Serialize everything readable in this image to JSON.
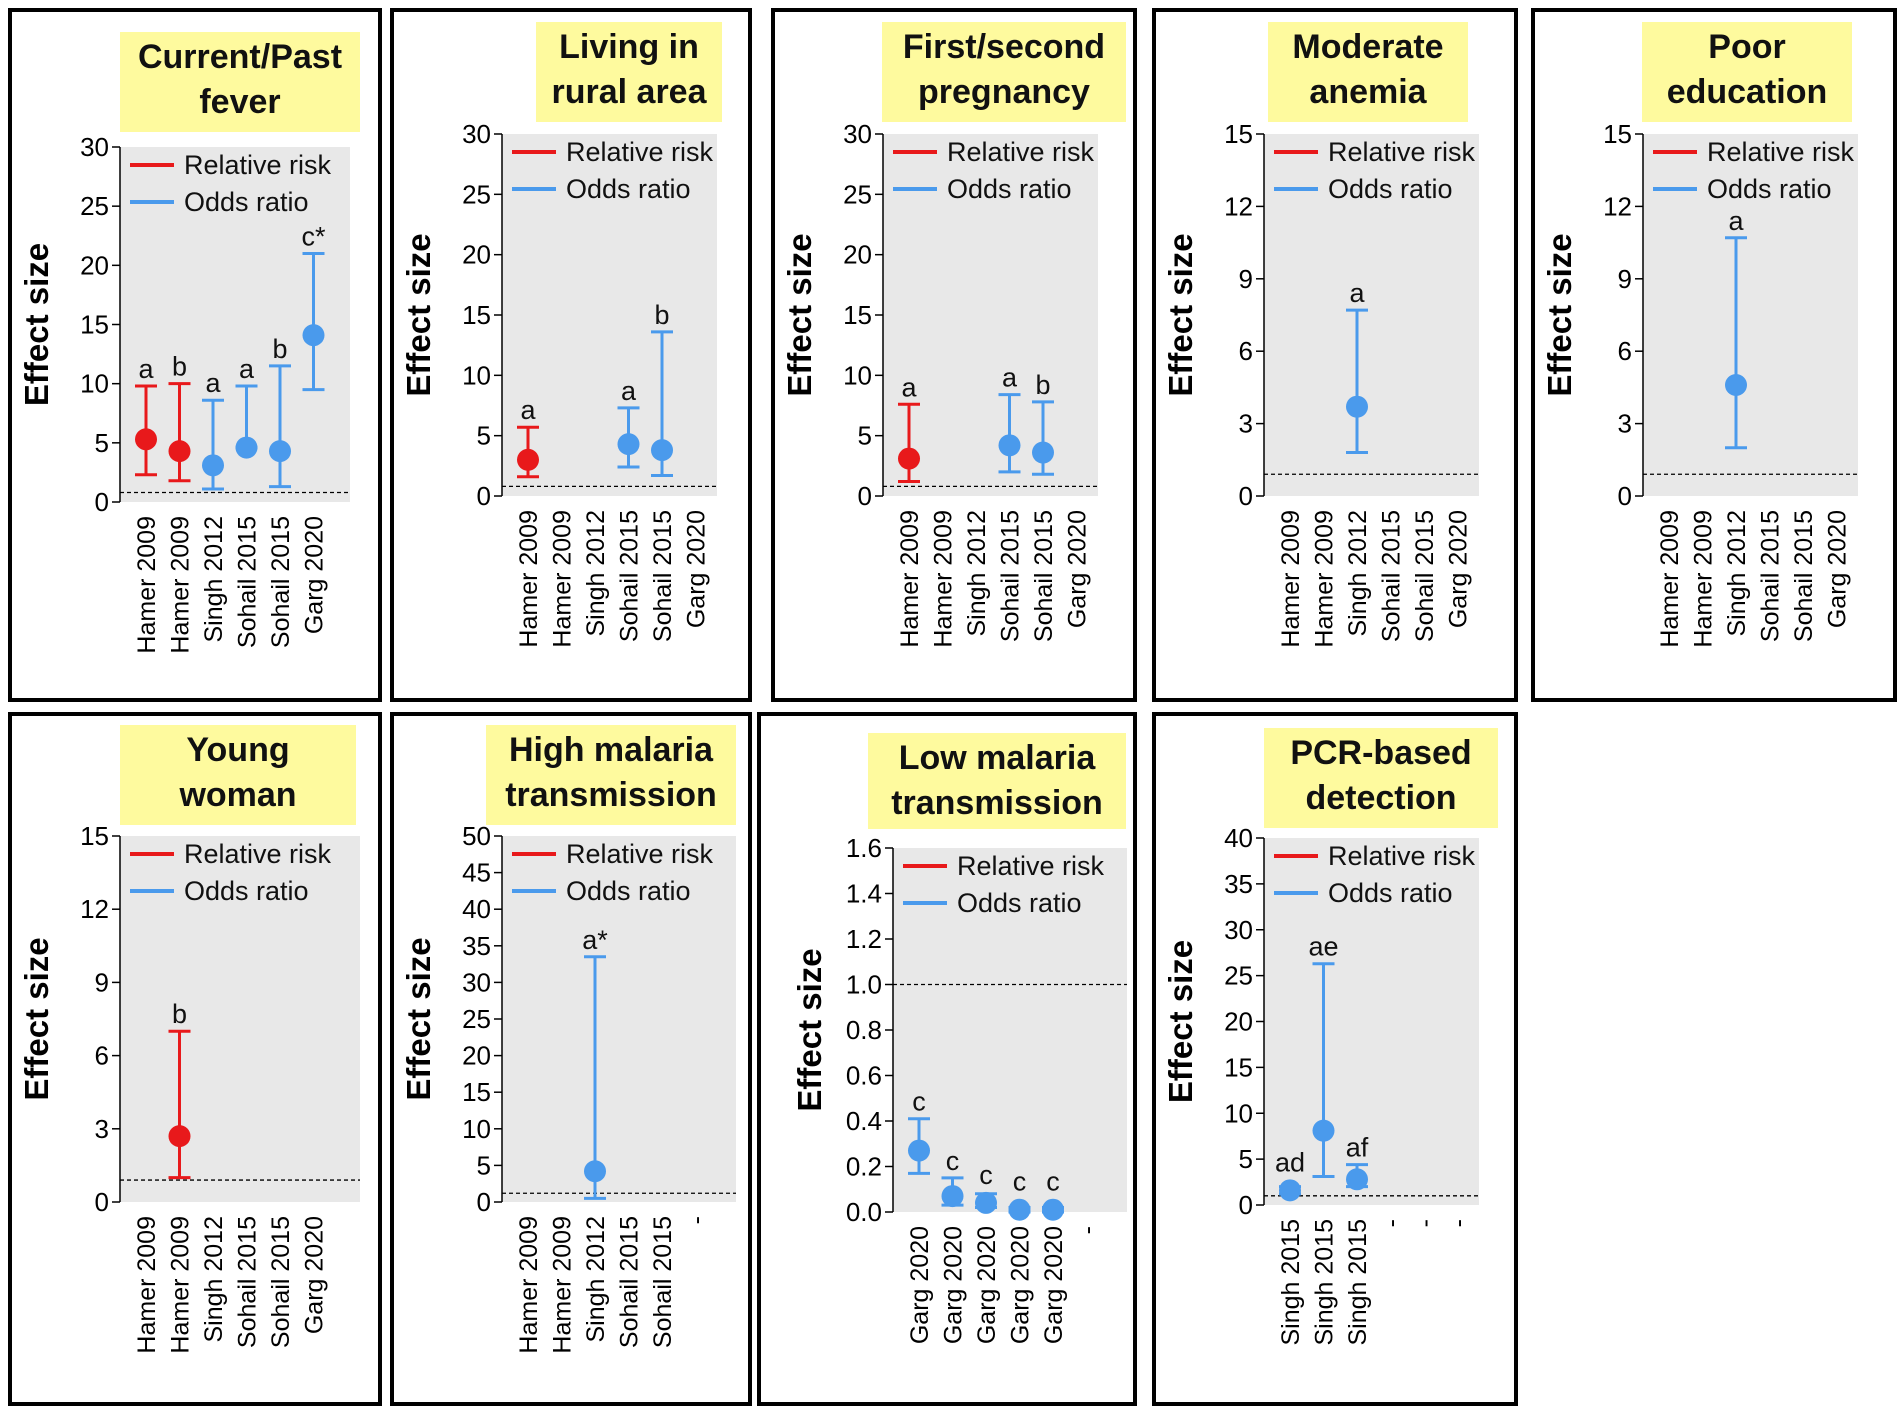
{
  "colors": {
    "relative_risk": "#e8191b",
    "odds_ratio": "#4a9aec",
    "title_bg": "#fefa9e",
    "plot_bg": "#e8e8e8"
  },
  "legend": {
    "rr": "Relative risk",
    "or": "Odds ratio"
  },
  "ylabel": "Effect size",
  "chart_data": [
    {
      "type": "scatter",
      "title": [
        "Current/Past",
        "fever"
      ],
      "ylabel": "Effect size",
      "ylim": [
        0,
        30
      ],
      "yticks": [
        0,
        5,
        10,
        15,
        20,
        25,
        30
      ],
      "reference_line": 0.8,
      "categories": [
        "Hamer 2009",
        "Hamer 2009",
        "Singh 2012",
        "Sohail 2015",
        "Sohail 2015",
        "Garg 2020"
      ],
      "points": [
        {
          "i": 0,
          "y": 5.3,
          "lo": 2.3,
          "hi": 9.8,
          "series": "rr",
          "label": "a"
        },
        {
          "i": 1,
          "y": 4.3,
          "lo": 1.8,
          "hi": 10.0,
          "series": "rr",
          "label": "b"
        },
        {
          "i": 2,
          "y": 3.1,
          "lo": 1.1,
          "hi": 8.6,
          "series": "or",
          "label": "a"
        },
        {
          "i": 3,
          "y": 4.6,
          "lo": 4.6,
          "hi": 9.8,
          "series": "or",
          "label": "a"
        },
        {
          "i": 4,
          "y": 4.3,
          "lo": 1.3,
          "hi": 11.5,
          "series": "or",
          "label": "b"
        },
        {
          "i": 5,
          "y": 14.1,
          "lo": 9.5,
          "hi": 21.0,
          "series": "or",
          "label": "c*"
        }
      ]
    },
    {
      "type": "scatter",
      "title": [
        "Living in",
        "rural area"
      ],
      "ylabel": "Effect size",
      "ylim": [
        0,
        30
      ],
      "yticks": [
        0,
        5,
        10,
        15,
        20,
        25,
        30
      ],
      "reference_line": 0.8,
      "categories": [
        "Hamer 2009",
        "Hamer 2009",
        "Singh 2012",
        "Sohail 2015",
        "Sohail 2015",
        "Garg 2020"
      ],
      "points": [
        {
          "i": 0,
          "y": 3.0,
          "lo": 1.6,
          "hi": 5.7,
          "series": "rr",
          "label": "a"
        },
        {
          "i": 3,
          "y": 4.3,
          "lo": 2.4,
          "hi": 7.3,
          "series": "or",
          "label": "a"
        },
        {
          "i": 4,
          "y": 3.8,
          "lo": 1.7,
          "hi": 13.6,
          "series": "or",
          "label": "b"
        }
      ]
    },
    {
      "type": "scatter",
      "title": [
        "First/second",
        "pregnancy"
      ],
      "ylabel": "Effect size",
      "ylim": [
        0,
        30
      ],
      "yticks": [
        0,
        5,
        10,
        15,
        20,
        25,
        30
      ],
      "reference_line": 0.8,
      "categories": [
        "Hamer 2009",
        "Hamer 2009",
        "Singh 2012",
        "Sohail 2015",
        "Sohail 2015",
        "Garg 2020"
      ],
      "points": [
        {
          "i": 0,
          "y": 3.1,
          "lo": 1.2,
          "hi": 7.6,
          "series": "rr",
          "label": "a"
        },
        {
          "i": 3,
          "y": 4.2,
          "lo": 2.0,
          "hi": 8.4,
          "series": "or",
          "label": "a"
        },
        {
          "i": 4,
          "y": 3.6,
          "lo": 1.8,
          "hi": 7.8,
          "series": "or",
          "label": "b"
        }
      ]
    },
    {
      "type": "scatter",
      "title": [
        "Moderate",
        "anemia"
      ],
      "ylabel": "Effect size",
      "ylim": [
        0,
        15
      ],
      "yticks": [
        0,
        3,
        6,
        9,
        12,
        15
      ],
      "reference_line": 0.9,
      "categories": [
        "Hamer 2009",
        "Hamer 2009",
        "Singh 2012",
        "Sohail 2015",
        "Sohail 2015",
        "Garg 2020"
      ],
      "points": [
        {
          "i": 2,
          "y": 3.7,
          "lo": 1.8,
          "hi": 7.7,
          "series": "or",
          "label": "a"
        }
      ]
    },
    {
      "type": "scatter",
      "title": [
        "Poor",
        "education"
      ],
      "ylabel": "Effect size",
      "ylim": [
        0,
        15
      ],
      "yticks": [
        0,
        3,
        6,
        9,
        12,
        15
      ],
      "reference_line": 0.9,
      "categories": [
        "Hamer 2009",
        "Hamer 2009",
        "Singh 2012",
        "Sohail 2015",
        "Sohail 2015",
        "Garg 2020"
      ],
      "points": [
        {
          "i": 2,
          "y": 4.6,
          "lo": 2.0,
          "hi": 10.7,
          "series": "or",
          "label": "a"
        }
      ]
    },
    {
      "type": "scatter",
      "title": [
        "Young",
        "woman"
      ],
      "ylabel": "Effect size",
      "ylim": [
        0,
        15
      ],
      "yticks": [
        0,
        3,
        6,
        9,
        12,
        15
      ],
      "reference_line": 0.9,
      "categories": [
        "Hamer 2009",
        "Hamer 2009",
        "Singh 2012",
        "Sohail 2015",
        "Sohail 2015",
        "Garg 2020"
      ],
      "points": [
        {
          "i": 1,
          "y": 2.7,
          "lo": 1.0,
          "hi": 7.0,
          "series": "rr",
          "label": "b"
        }
      ]
    },
    {
      "type": "scatter",
      "title": [
        "High malaria",
        "transmission"
      ],
      "ylabel": "Effect size",
      "ylim": [
        0,
        50
      ],
      "yticks": [
        0,
        5,
        10,
        15,
        20,
        25,
        30,
        35,
        40,
        45,
        50
      ],
      "reference_line": 1.2,
      "categories": [
        "Hamer 2009",
        "Hamer 2009",
        "Singh 2012",
        "Sohail 2015",
        "Sohail 2015",
        "-"
      ],
      "points": [
        {
          "i": 2,
          "y": 4.2,
          "lo": 0.5,
          "hi": 33.5,
          "series": "or",
          "label": "a*"
        }
      ]
    },
    {
      "type": "scatter",
      "title": [
        "Low malaria",
        "transmission"
      ],
      "ylabel": "Effect size",
      "ylim": [
        0,
        1.6
      ],
      "yticks": [
        0.0,
        0.2,
        0.4,
        0.6,
        0.8,
        1.0,
        1.2,
        1.4,
        1.6
      ],
      "reference_line": 1.0,
      "categories": [
        "Garg 2020",
        "Garg 2020",
        "Garg 2020",
        "Garg 2020",
        "Garg 2020",
        "-"
      ],
      "points": [
        {
          "i": 0,
          "y": 0.27,
          "lo": 0.17,
          "hi": 0.41,
          "series": "or",
          "label": "c"
        },
        {
          "i": 1,
          "y": 0.07,
          "lo": 0.03,
          "hi": 0.15,
          "series": "or",
          "label": "c"
        },
        {
          "i": 2,
          "y": 0.04,
          "lo": 0.02,
          "hi": 0.08,
          "series": "or",
          "label": "c"
        },
        {
          "i": 3,
          "y": 0.01,
          "lo": 0.0,
          "hi": 0.02,
          "series": "or",
          "label": "c"
        },
        {
          "i": 4,
          "y": 0.01,
          "lo": 0.0,
          "hi": 0.02,
          "series": "or",
          "label": "c"
        }
      ]
    },
    {
      "type": "scatter",
      "title": [
        "PCR-based",
        "detection"
      ],
      "ylabel": "Effect size",
      "ylim": [
        0,
        40
      ],
      "yticks": [
        0,
        5,
        10,
        15,
        20,
        25,
        30,
        35,
        40
      ],
      "reference_line": 1.0,
      "categories": [
        "Singh 2015",
        "Singh 2015",
        "Singh 2015",
        "-",
        "-",
        "-"
      ],
      "points": [
        {
          "i": 0,
          "y": 1.6,
          "lo": 1.2,
          "hi": 2.0,
          "series": "or",
          "label": "ad"
        },
        {
          "i": 1,
          "y": 8.1,
          "lo": 3.1,
          "hi": 26.3,
          "series": "or",
          "label": "ae"
        },
        {
          "i": 2,
          "y": 2.8,
          "lo": 2.0,
          "hi": 4.4,
          "series": "or",
          "label": "af"
        }
      ]
    }
  ]
}
